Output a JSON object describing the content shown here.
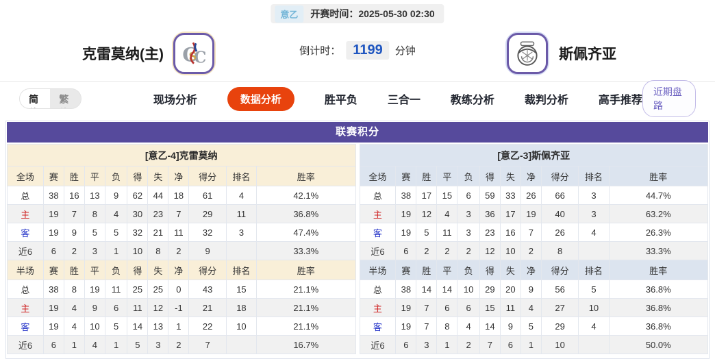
{
  "colors": {
    "header_purple": "#564a9c",
    "accent_orange": "#e8430d",
    "cream_header": "#f9efd8",
    "blue_header": "#dce4ef",
    "home_red": "#cf2222",
    "away_blue": "#2736c9",
    "countdown_blue": "#1f56c0",
    "badge_blue": "#74b6d8"
  },
  "header": {
    "league_badge": "意乙",
    "kickoff_label": "开赛时间：",
    "kickoff_time": "2025-05-30 02:30",
    "home_team": "克雷莫纳(主)",
    "away_team": "斯佩齐亚",
    "countdown_label": "倒计时：",
    "countdown_value": "1199",
    "countdown_unit": "分钟",
    "home_logo_icon": "cremonese-crest-icon",
    "away_logo_icon": "spezia-crest-icon"
  },
  "nav": {
    "lang_simplified": "简体",
    "lang_traditional": "繁体",
    "tabs": [
      {
        "label": "现场分析",
        "active": false
      },
      {
        "label": "数据分析",
        "active": true
      },
      {
        "label": "胜平负",
        "active": false
      },
      {
        "label": "三合一",
        "active": false
      },
      {
        "label": "教练分析",
        "active": false
      },
      {
        "label": "裁判分析",
        "active": false
      },
      {
        "label": "高手推荐",
        "active": false
      }
    ],
    "recent_button": "近期盘路"
  },
  "standings": {
    "title": "联赛积分",
    "col_widths": [
      "10.4%",
      "5.9%",
      "5.9%",
      "5.9%",
      "6.4%",
      "5.9%",
      "5.9%",
      "5.9%",
      "10.7%",
      "8.7%",
      "28.4%"
    ],
    "left": {
      "subtitle": "[意乙-4]克雷莫纳",
      "full": {
        "header": [
          "全场",
          "赛",
          "胜",
          "平",
          "负",
          "得",
          "失",
          "净",
          "得分",
          "排名",
          "胜率"
        ],
        "rows": [
          {
            "label": "总",
            "type": "total",
            "cells": [
              "38",
              "16",
              "13",
              "9",
              "62",
              "44",
              "18",
              "61",
              "4",
              "42.1%"
            ]
          },
          {
            "label": "主",
            "type": "home",
            "cells": [
              "19",
              "7",
              "8",
              "4",
              "30",
              "23",
              "7",
              "29",
              "11",
              "36.8%"
            ]
          },
          {
            "label": "客",
            "type": "away",
            "cells": [
              "19",
              "9",
              "5",
              "5",
              "32",
              "21",
              "11",
              "32",
              "3",
              "47.4%"
            ]
          },
          {
            "label": "近6",
            "type": "recent",
            "cells": [
              "6",
              "2",
              "3",
              "1",
              "10",
              "8",
              "2",
              "9",
              "",
              "33.3%"
            ]
          }
        ]
      },
      "half": {
        "header": [
          "半场",
          "赛",
          "胜",
          "平",
          "负",
          "得",
          "失",
          "净",
          "得分",
          "排名",
          "胜率"
        ],
        "rows": [
          {
            "label": "总",
            "type": "total",
            "cells": [
              "38",
              "8",
              "19",
              "11",
              "25",
              "25",
              "0",
              "43",
              "15",
              "21.1%"
            ]
          },
          {
            "label": "主",
            "type": "home",
            "cells": [
              "19",
              "4",
              "9",
              "6",
              "11",
              "12",
              "-1",
              "21",
              "18",
              "21.1%"
            ]
          },
          {
            "label": "客",
            "type": "away",
            "cells": [
              "19",
              "4",
              "10",
              "5",
              "14",
              "13",
              "1",
              "22",
              "10",
              "21.1%"
            ]
          },
          {
            "label": "近6",
            "type": "recent",
            "cells": [
              "6",
              "1",
              "4",
              "1",
              "5",
              "3",
              "2",
              "7",
              "",
              "16.7%"
            ]
          }
        ]
      }
    },
    "right": {
      "subtitle": "[意乙-3]斯佩齐亚",
      "full": {
        "header": [
          "全场",
          "赛",
          "胜",
          "平",
          "负",
          "得",
          "失",
          "净",
          "得分",
          "排名",
          "胜率"
        ],
        "rows": [
          {
            "label": "总",
            "type": "total",
            "cells": [
              "38",
              "17",
              "15",
              "6",
              "59",
              "33",
              "26",
              "66",
              "3",
              "44.7%"
            ]
          },
          {
            "label": "主",
            "type": "home",
            "cells": [
              "19",
              "12",
              "4",
              "3",
              "36",
              "17",
              "19",
              "40",
              "3",
              "63.2%"
            ]
          },
          {
            "label": "客",
            "type": "away",
            "cells": [
              "19",
              "5",
              "11",
              "3",
              "23",
              "16",
              "7",
              "26",
              "4",
              "26.3%"
            ]
          },
          {
            "label": "近6",
            "type": "recent",
            "cells": [
              "6",
              "2",
              "2",
              "2",
              "12",
              "10",
              "2",
              "8",
              "",
              "33.3%"
            ]
          }
        ]
      },
      "half": {
        "header": [
          "半场",
          "赛",
          "胜",
          "平",
          "负",
          "得",
          "失",
          "净",
          "得分",
          "排名",
          "胜率"
        ],
        "rows": [
          {
            "label": "总",
            "type": "total",
            "cells": [
              "38",
              "14",
              "14",
              "10",
              "29",
              "20",
              "9",
              "56",
              "5",
              "36.8%"
            ]
          },
          {
            "label": "主",
            "type": "home",
            "cells": [
              "19",
              "7",
              "6",
              "6",
              "15",
              "11",
              "4",
              "27",
              "10",
              "36.8%"
            ]
          },
          {
            "label": "客",
            "type": "away",
            "cells": [
              "19",
              "7",
              "8",
              "4",
              "14",
              "9",
              "5",
              "29",
              "4",
              "36.8%"
            ]
          },
          {
            "label": "近6",
            "type": "recent",
            "cells": [
              "6",
              "3",
              "1",
              "2",
              "7",
              "6",
              "1",
              "10",
              "",
              "50.0%"
            ]
          }
        ]
      }
    }
  }
}
